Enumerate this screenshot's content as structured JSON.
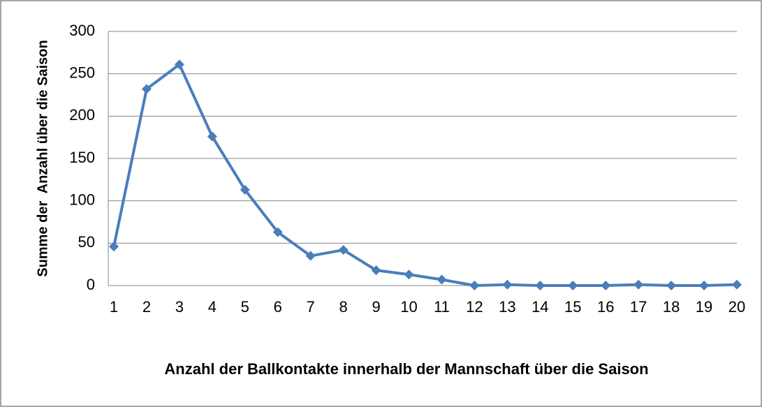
{
  "chart_data": {
    "type": "line",
    "x_label": "Anzahl der Ballkontakte innerhalb der Mannschaft über die Saison",
    "y_label": "Summe der  Anzahl über die Saison",
    "categories": [
      "1",
      "2",
      "3",
      "4",
      "5",
      "6",
      "7",
      "8",
      "9",
      "10",
      "11",
      "12",
      "13",
      "14",
      "15",
      "16",
      "17",
      "18",
      "19",
      "20"
    ],
    "values": [
      46,
      232,
      261,
      176,
      113,
      63,
      35,
      42,
      18,
      13,
      7,
      0,
      1,
      0,
      0,
      0,
      1,
      0,
      0,
      1
    ],
    "color": "#4a7ebb",
    "ylim": [
      0,
      300
    ],
    "yticks": [
      0,
      50,
      100,
      150,
      200,
      250,
      300
    ],
    "grid": true
  }
}
